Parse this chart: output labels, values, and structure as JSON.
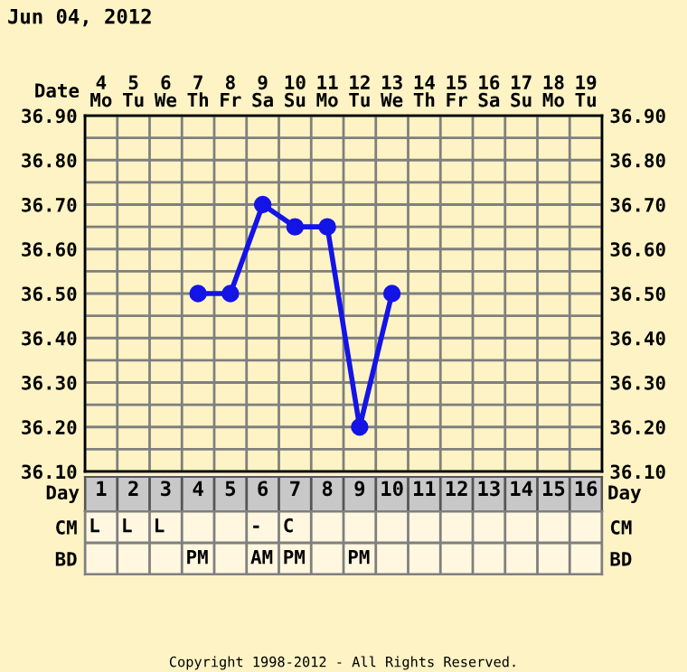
{
  "chart_data": [
    {
      "type": "line",
      "title": "Jun 04, 2012",
      "xlabel": "Date",
      "categories": [
        "4\nMo",
        "5\nTu",
        "6\nWe",
        "7\nTh",
        "8\nFr",
        "9\nSa",
        "10\nSu",
        "11\nMo",
        "12\nTu",
        "13\nWe",
        "14\nTh",
        "15\nFr",
        "16\nSa",
        "17\nSu",
        "18\nMo",
        "19\nTu"
      ],
      "series": [
        {
          "color": "#1414e6",
          "values": [
            null,
            null,
            null,
            36.5,
            36.5,
            36.7,
            36.65,
            36.65,
            36.2,
            36.5,
            null,
            null,
            null,
            null,
            null,
            null
          ]
        }
      ],
      "ylim": [
        36.1,
        36.9
      ],
      "yticks": [
        {
          "value": 36.1,
          "label": "36.10"
        },
        {
          "value": 36.15,
          "label": null
        },
        {
          "value": 36.2,
          "label": "36.20"
        },
        {
          "value": 36.25,
          "label": null
        },
        {
          "value": 36.3,
          "label": "36.30"
        },
        {
          "value": 36.35,
          "label": null
        },
        {
          "value": 36.4,
          "label": "36.40"
        },
        {
          "value": 36.45,
          "label": null
        },
        {
          "value": 36.5,
          "label": "36.50"
        },
        {
          "value": 36.55,
          "label": null
        },
        {
          "value": 36.6,
          "label": "36.60"
        },
        {
          "value": 36.65,
          "label": null
        },
        {
          "value": 36.7,
          "label": "36.70"
        },
        {
          "value": 36.75,
          "label": null
        },
        {
          "value": 36.8,
          "label": "36.80"
        },
        {
          "value": 36.85,
          "label": null
        },
        {
          "value": 36.9,
          "label": "36.90"
        }
      ],
      "y2lim": [
        36.1,
        36.9
      ],
      "y2ticks": [
        {
          "value": 36.1,
          "label": "36.10"
        },
        {
          "value": 36.15,
          "label": null
        },
        {
          "value": 36.2,
          "label": "36.20"
        },
        {
          "value": 36.25,
          "label": null
        },
        {
          "value": 36.3,
          "label": "36.30"
        },
        {
          "value": 36.35,
          "label": null
        },
        {
          "value": 36.4,
          "label": "36.40"
        },
        {
          "value": 36.45,
          "label": null
        },
        {
          "value": 36.5,
          "label": "36.50"
        },
        {
          "value": 36.55,
          "label": null
        },
        {
          "value": 36.6,
          "label": "36.60"
        },
        {
          "value": 36.65,
          "label": null
        },
        {
          "value": 36.7,
          "label": "36.70"
        },
        {
          "value": 36.75,
          "label": null
        },
        {
          "value": 36.8,
          "label": "36.80"
        },
        {
          "value": 36.85,
          "label": null
        },
        {
          "value": 36.9,
          "label": "36.90"
        }
      ],
      "grid": true,
      "marker": "circle",
      "line_style": "solid",
      "annotations": [
        "Copyright 1998-2012 - All Rights Reserved."
      ]
    },
    {
      "type": "heatmap",
      "xlabel": "Day",
      "categories": [
        "1",
        "2",
        "3",
        "4",
        "5",
        "6",
        "7",
        "8",
        "9",
        "10",
        "11",
        "12",
        "13",
        "14",
        "15",
        "16"
      ],
      "y_categories": [
        "CM",
        "BD"
      ],
      "y2_categories": [
        "CM",
        "BD"
      ],
      "cells": [
        [
          null,
          null,
          null,
          null,
          null,
          null,
          null,
          null,
          null,
          null,
          null,
          null,
          null,
          null,
          null,
          null
        ],
        [
          null,
          null,
          null,
          null,
          null,
          null,
          null,
          null,
          null,
          null,
          null,
          null,
          null,
          null,
          null,
          null
        ]
      ],
      "cell_labels": [
        [
          "L",
          "L",
          "L",
          null,
          null,
          "-",
          "C",
          null,
          null,
          null,
          null,
          null,
          null,
          null,
          null,
          null
        ],
        [
          null,
          null,
          null,
          "PM",
          null,
          "AM",
          "PM",
          null,
          "PM",
          null,
          null,
          null,
          null,
          null,
          null,
          null
        ]
      ]
    }
  ]
}
